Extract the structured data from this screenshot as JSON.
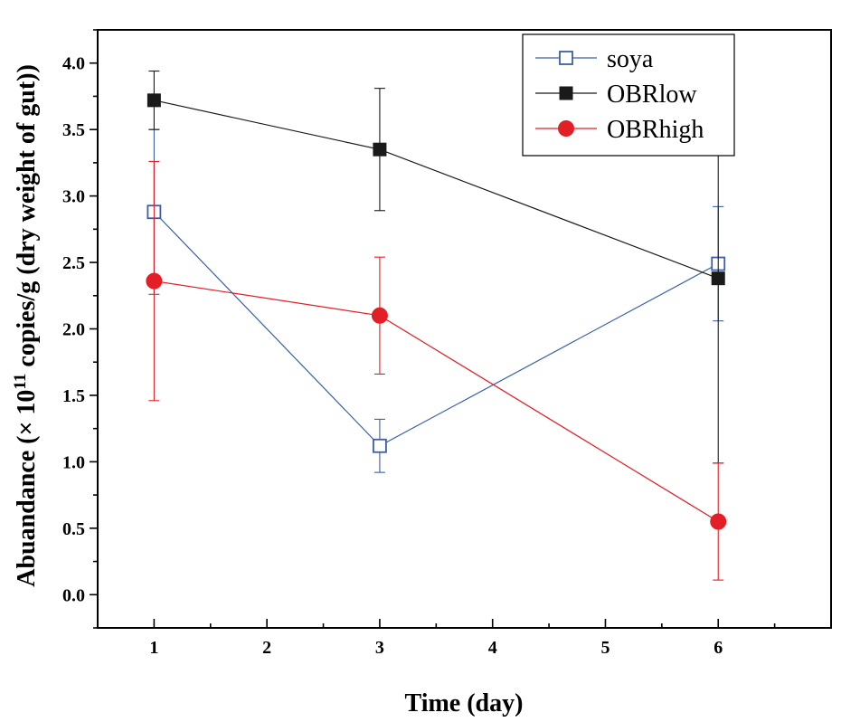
{
  "chart_data": {
    "type": "line",
    "title": "",
    "xlabel": "Time (day)",
    "ylabel": {
      "prefix": "Abuandance  (× 10",
      "superscript": "11",
      "suffix": " copies/g (dry weight of gut))"
    },
    "xlim": [
      0.5,
      7
    ],
    "ylim": [
      -0.25,
      4.25
    ],
    "xticks": [
      1,
      2,
      3,
      4,
      5,
      6
    ],
    "xtick_labels": [
      "1",
      "2",
      "3",
      "4",
      "5",
      "6"
    ],
    "yticks": [
      0.0,
      0.5,
      1.0,
      1.5,
      2.0,
      2.5,
      3.0,
      3.5,
      4.0
    ],
    "ytick_labels": [
      "0.0",
      "0.5",
      "1.0",
      "1.5",
      "2.0",
      "2.5",
      "3.0",
      "3.5",
      "4.0"
    ],
    "legend_position": "top-right",
    "series": [
      {
        "name": "soya",
        "color": "#3a5fa8",
        "marker": "open-square",
        "x": [
          1,
          3,
          6
        ],
        "y": [
          2.88,
          1.12,
          2.49
        ],
        "err": [
          0.62,
          0.2,
          0.43
        ]
      },
      {
        "name": "OBRlow",
        "color": "#1a1a1a",
        "marker": "filled-square",
        "x": [
          1,
          3,
          6
        ],
        "y": [
          3.72,
          3.35,
          2.38
        ],
        "err": [
          0.22,
          0.46,
          1.39
        ]
      },
      {
        "name": "OBRhigh",
        "color": "#e21f26",
        "marker": "filled-circle",
        "x": [
          1,
          3,
          6
        ],
        "y": [
          2.36,
          2.1,
          0.55
        ],
        "err": [
          0.9,
          0.44,
          0.44
        ]
      }
    ]
  }
}
